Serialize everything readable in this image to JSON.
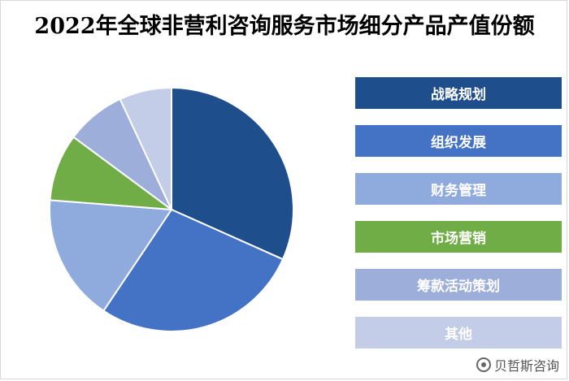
{
  "chart_data": {
    "type": "pie",
    "title": "2022年全球非营利咨询服务市场细分产品产值份额",
    "categories": [
      "战略规划",
      "组织发展",
      "财务管理",
      "市场营销",
      "筹款活动策划",
      "其他"
    ],
    "values": [
      32,
      28,
      17,
      9,
      8,
      7
    ],
    "colors": [
      "#1F4E8C",
      "#4472C4",
      "#8FAADC",
      "#70AD47",
      "#9DAEDA",
      "#C3CDE8"
    ],
    "legend_position": "right"
  },
  "watermark": {
    "text": "贝哲斯咨询",
    "icon": "weibo-icon"
  }
}
